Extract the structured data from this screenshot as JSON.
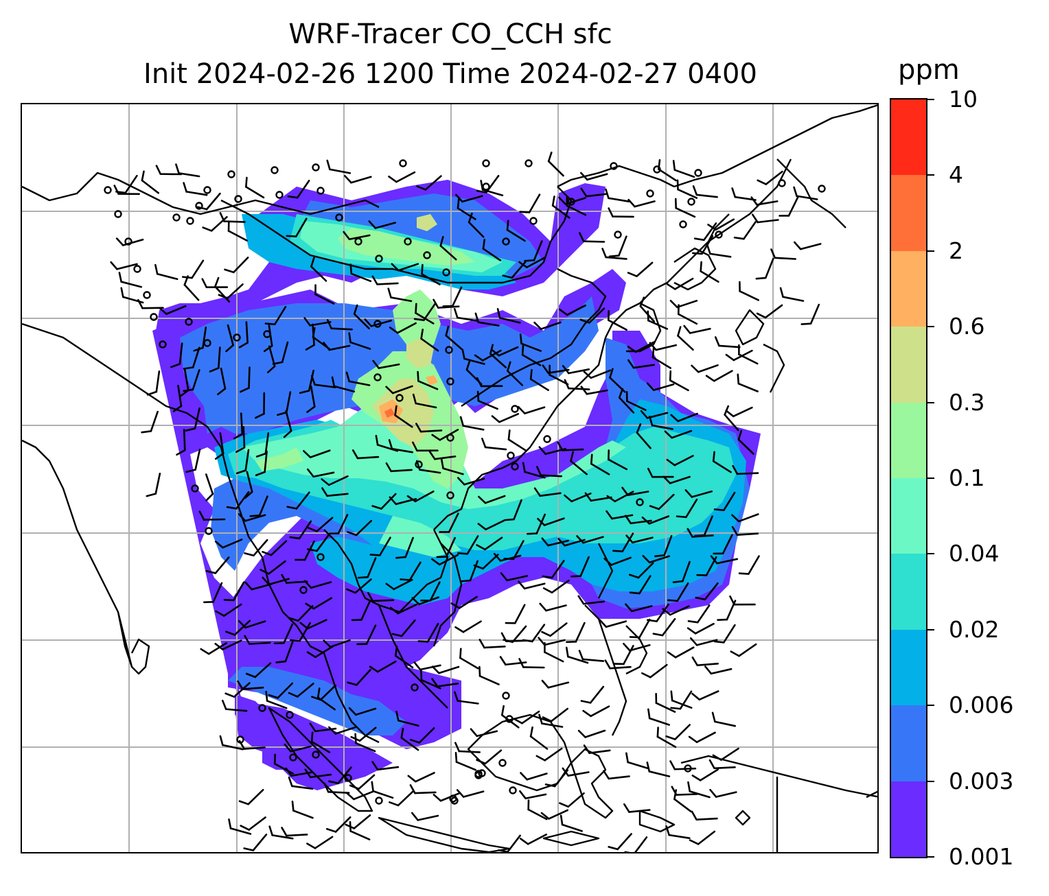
{
  "title": {
    "line1": "WRF-Tracer CO_CCH sfc",
    "line2": "Init 2024-02-26 1200 Time 2024-02-27 0400"
  },
  "colorbar": {
    "unit": "ppm",
    "ticks": [
      "0.001",
      "0.003",
      "0.006",
      "0.02",
      "0.04",
      "0.1",
      "0.3",
      "0.6",
      "2",
      "4",
      "10"
    ],
    "colors": [
      "#6a2cff",
      "#3777f7",
      "#04b0e8",
      "#2fdfd0",
      "#6cf8c4",
      "#9af79d",
      "#cfe08a",
      "#ffb060",
      "#ff7038",
      "#ff2a18"
    ]
  },
  "map": {
    "gridline_color": "#b0b0b0",
    "coastline_color": "#000000",
    "field_levels": [
      {
        "level": "0.001",
        "color": "#6a2cff"
      },
      {
        "level": "0.003",
        "color": "#3777f7"
      },
      {
        "level": "0.006",
        "color": "#04b0e8"
      },
      {
        "level": "0.02",
        "color": "#2fdfd0"
      },
      {
        "level": "0.04",
        "color": "#6cf8c4"
      },
      {
        "level": "0.1",
        "color": "#9af79d"
      },
      {
        "level": "0.3",
        "color": "#cfe08a"
      },
      {
        "level": "0.6",
        "color": "#ffb060"
      },
      {
        "level": "2",
        "color": "#ff7038"
      }
    ]
  }
}
